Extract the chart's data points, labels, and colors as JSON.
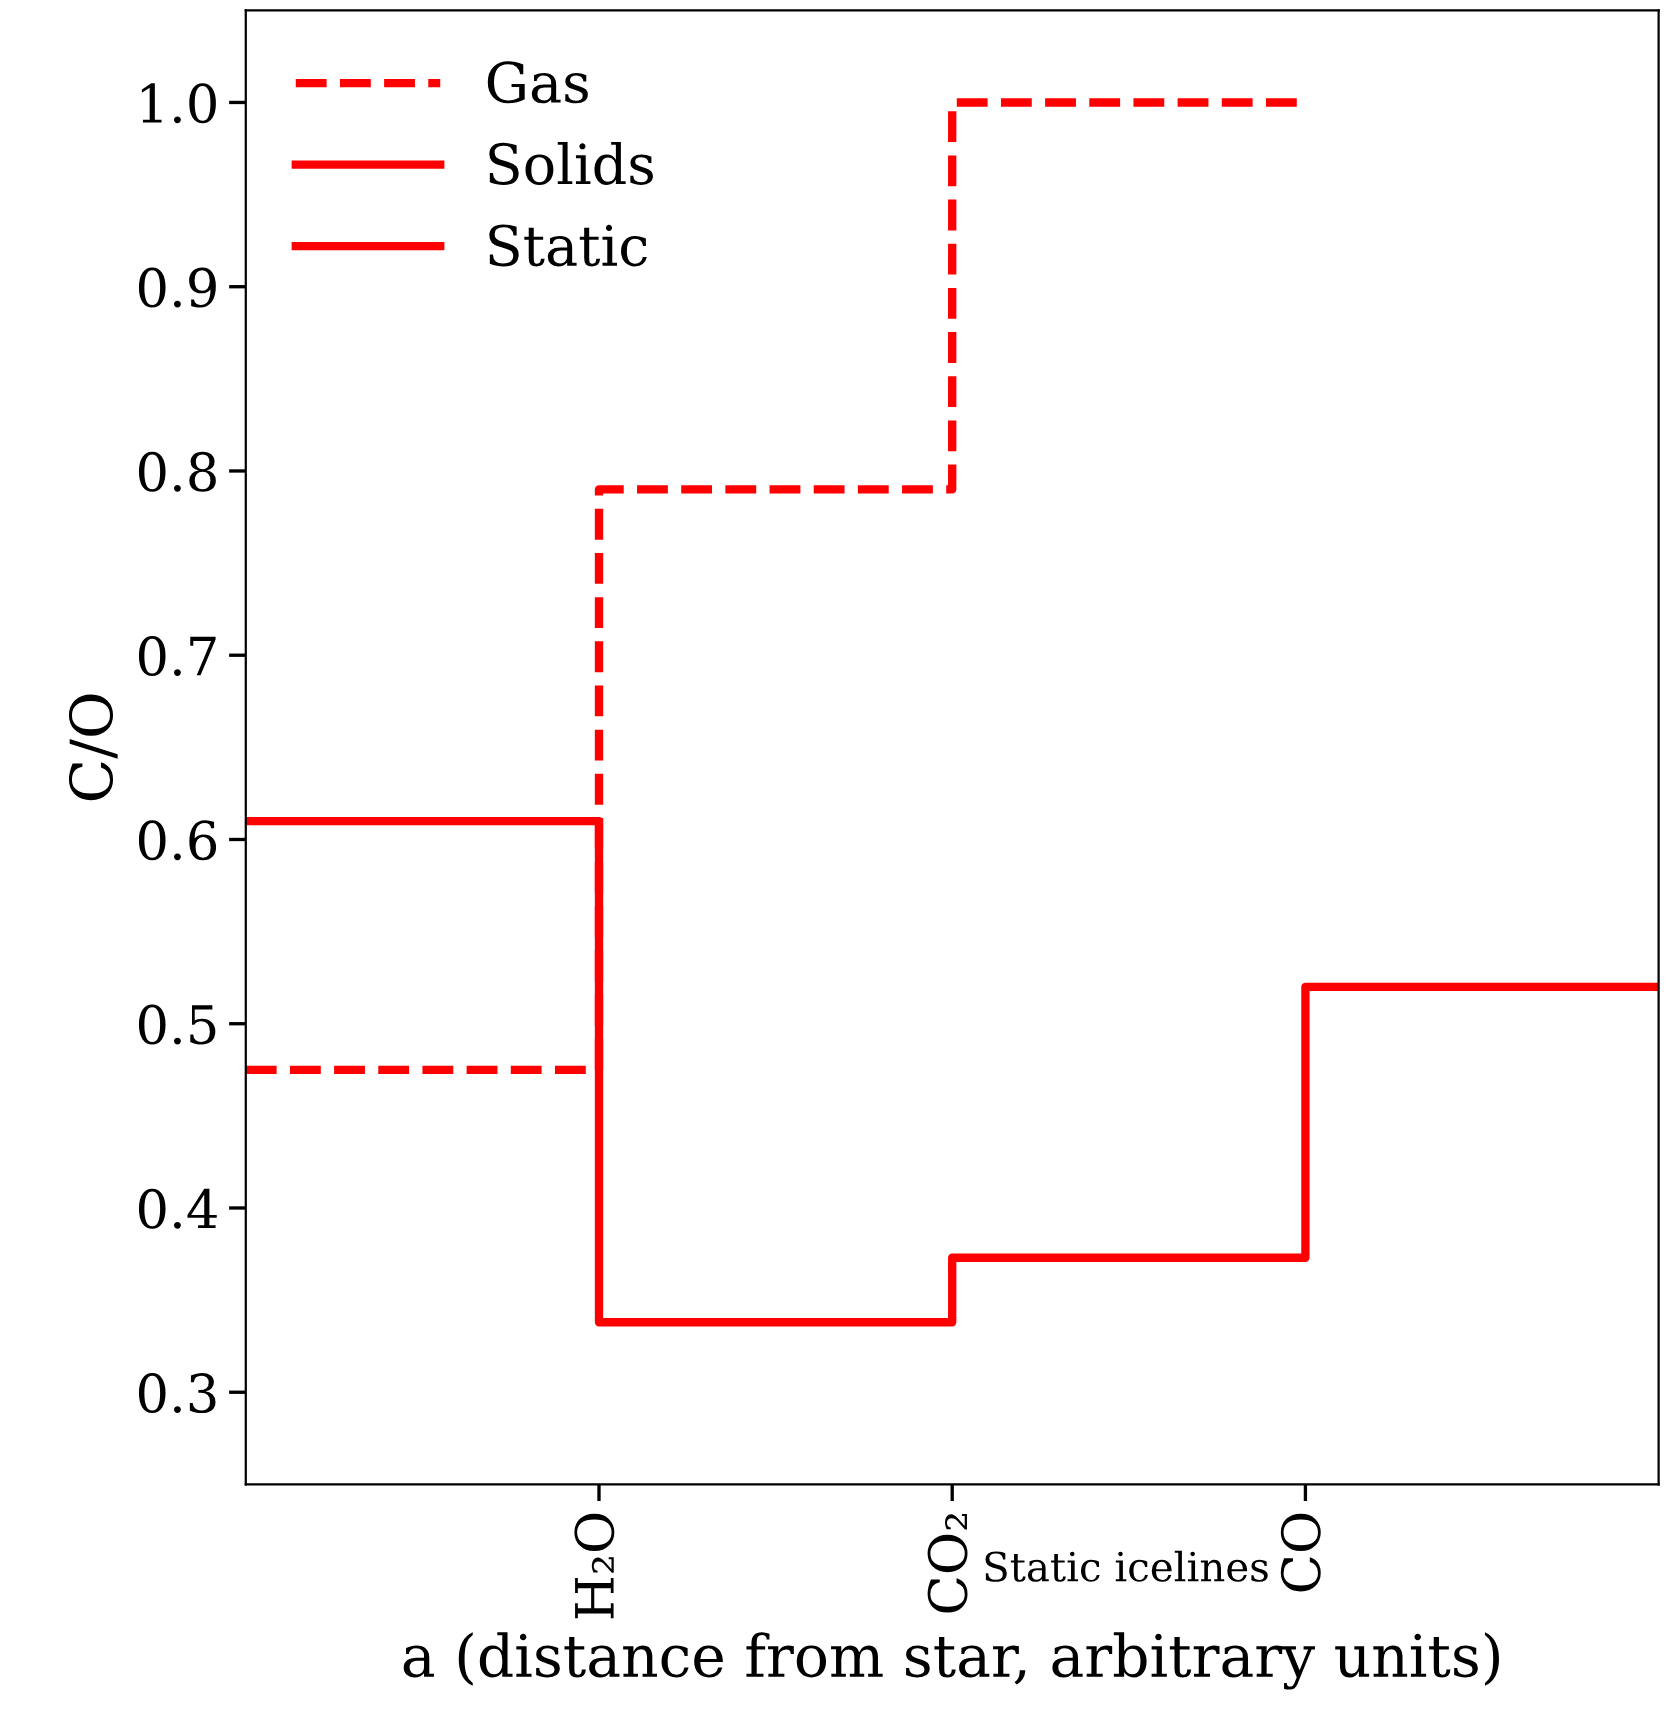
{
  "chart_data": {
    "type": "step",
    "ylabel": "C/O",
    "xlabel": "a (distance from star, arbitrary units)",
    "categories": [
      null,
      "H₂O",
      "CO₂",
      "CO",
      null
    ],
    "ylim": [
      0.25,
      1.05
    ],
    "yticks": [
      0.3,
      0.4,
      0.5,
      0.6,
      0.7,
      0.8,
      0.9,
      {
        "value": 1.0,
        "label": "1.0"
      }
    ],
    "series": [
      {
        "name": "Gas",
        "color": "#ff0000",
        "line_style": "dashed",
        "values": [
          0.475,
          0.79,
          1.0,
          1.0,
          null
        ]
      },
      {
        "name": "Solids",
        "color": "#ff0000",
        "line_style": "solid",
        "values": [
          0.61,
          0.338,
          0.373,
          0.52,
          0.52
        ]
      }
    ],
    "annotations": [
      "Static icelines",
      "Static"
    ],
    "legend": "top left",
    "grid": false,
    "marker": "none"
  }
}
